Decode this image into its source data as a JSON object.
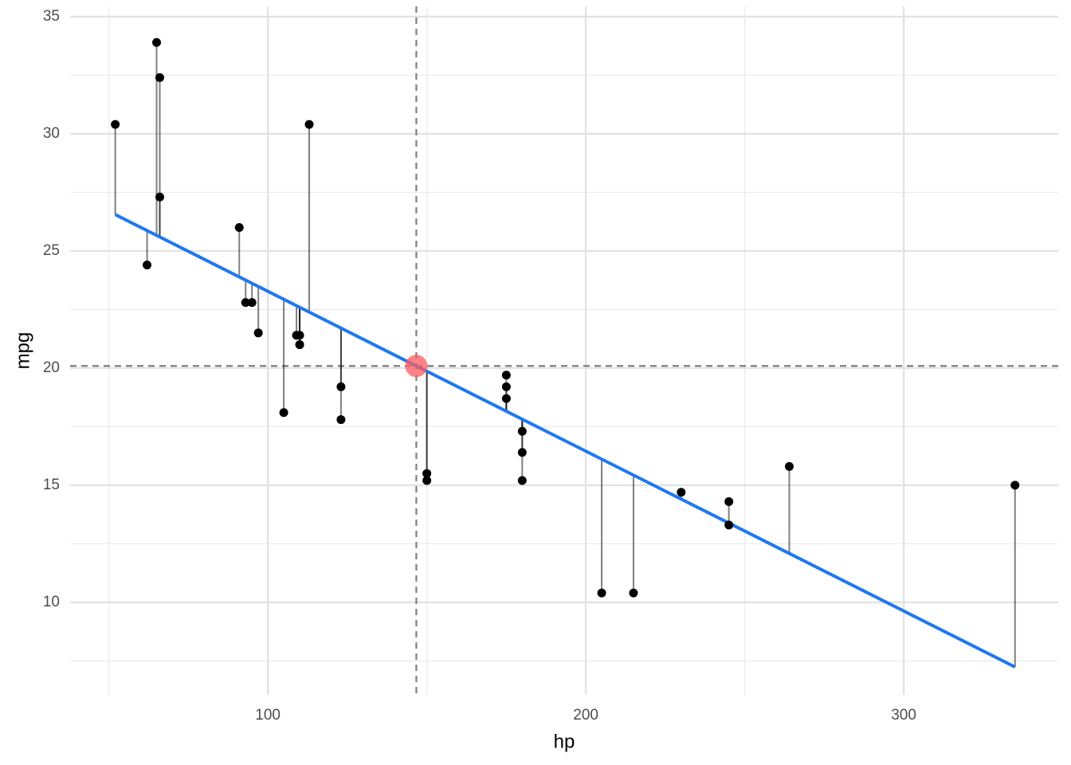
{
  "chart_data": {
    "type": "scatter",
    "x_label": "hp",
    "y_label": "mpg",
    "x": [
      110,
      110,
      93,
      110,
      175,
      105,
      245,
      62,
      95,
      123,
      123,
      180,
      180,
      180,
      205,
      215,
      230,
      66,
      52,
      65,
      97,
      150,
      150,
      245,
      175,
      66,
      91,
      113,
      264,
      175,
      335,
      109
    ],
    "y": [
      21.0,
      21.0,
      22.8,
      21.4,
      18.7,
      18.1,
      14.3,
      24.4,
      22.8,
      19.2,
      17.8,
      16.4,
      17.3,
      15.2,
      10.4,
      10.4,
      14.7,
      32.4,
      30.4,
      33.9,
      21.5,
      15.5,
      15.2,
      13.3,
      19.2,
      27.3,
      26.0,
      30.4,
      15.8,
      19.7,
      15.0,
      21.4
    ],
    "fitted": [
      22.594,
      22.594,
      23.753,
      22.594,
      18.159,
      22.935,
      13.383,
      25.869,
      23.617,
      21.707,
      21.707,
      17.818,
      17.818,
      17.818,
      16.112,
      15.43,
      14.406,
      25.596,
      26.551,
      25.664,
      23.481,
      19.865,
      19.865,
      13.383,
      18.159,
      25.596,
      23.89,
      22.389,
      12.087,
      18.159,
      7.242,
      22.662
    ],
    "point_color": "#000000",
    "fit_line": {
      "x": [
        52,
        335
      ],
      "y": [
        26.551,
        7.242
      ],
      "color": "#1e78f0"
    },
    "mean": {
      "x": 146.6875,
      "y": 20.0906,
      "color": "#ff5a5f"
    },
    "xlim": [
      37.8,
      348.6
    ],
    "ylim": [
      6.05,
      35.44
    ],
    "xticks": [
      100,
      200,
      300
    ],
    "yticks": [
      10,
      15,
      20,
      25,
      30,
      35
    ],
    "xminor": [
      50,
      150,
      250
    ],
    "yminor": [
      7.5,
      12.5,
      17.5,
      22.5,
      27.5,
      32.5
    ],
    "grid": true
  }
}
